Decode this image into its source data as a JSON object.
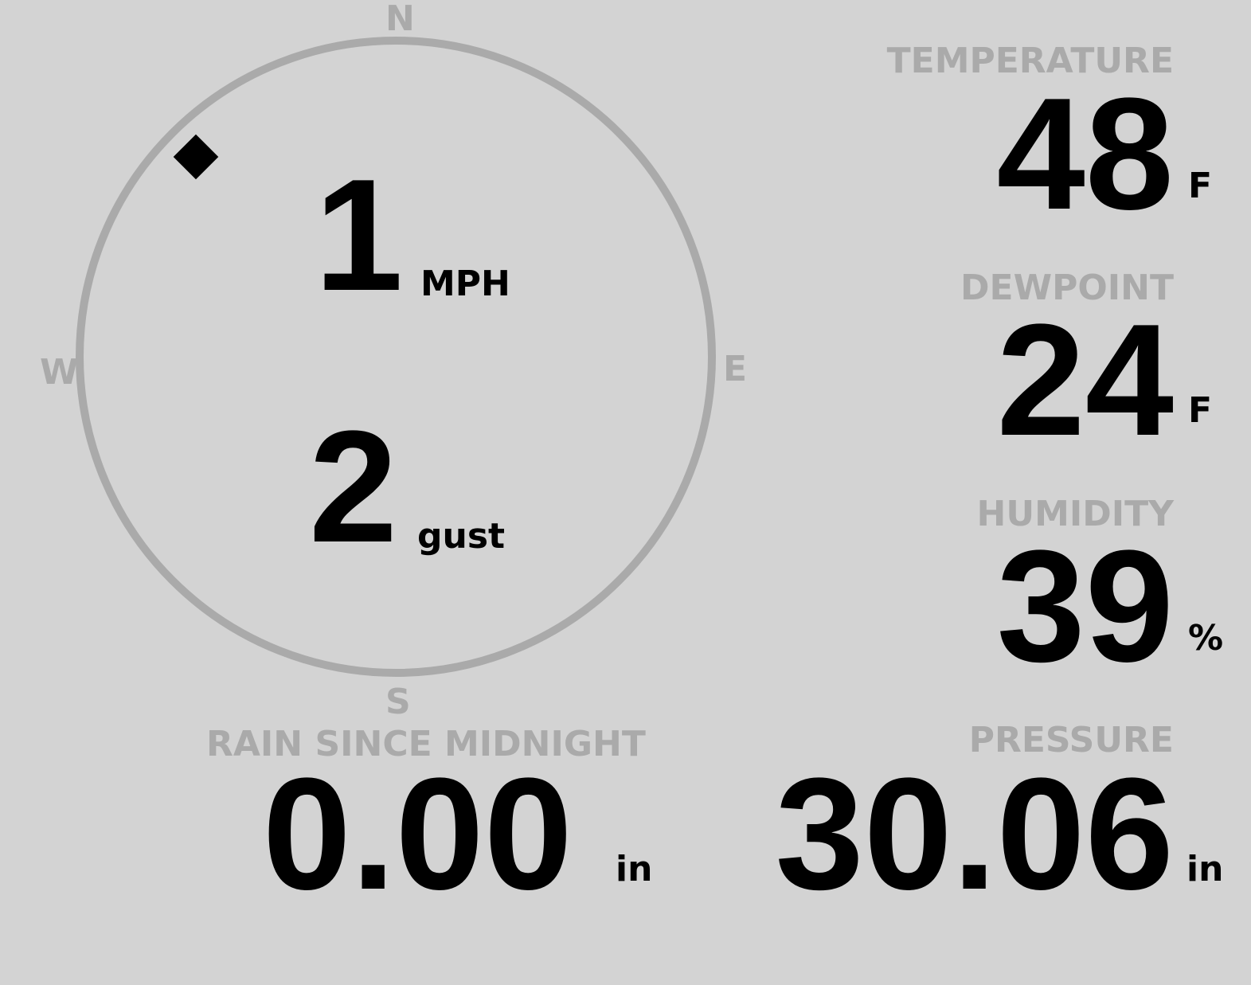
{
  "compass": {
    "north": "N",
    "south": "S",
    "east": "E",
    "west": "W",
    "wind_direction_deg": 315,
    "ring_color": "#aaaaaa"
  },
  "wind": {
    "speed": "1",
    "speed_unit": "MPH",
    "gust": "2",
    "gust_unit": "gust"
  },
  "temperature": {
    "label": "TEMPERATURE",
    "value": "48",
    "unit": "F"
  },
  "dewpoint": {
    "label": "DEWPOINT",
    "value": "24",
    "unit": "F"
  },
  "humidity": {
    "label": "HUMIDITY",
    "value": "39",
    "unit": "%"
  },
  "rain": {
    "label": "RAIN SINCE MIDNIGHT",
    "value": "0.00",
    "unit": "in"
  },
  "pressure": {
    "label": "PRESSURE",
    "value": "30.06",
    "unit": "in"
  }
}
